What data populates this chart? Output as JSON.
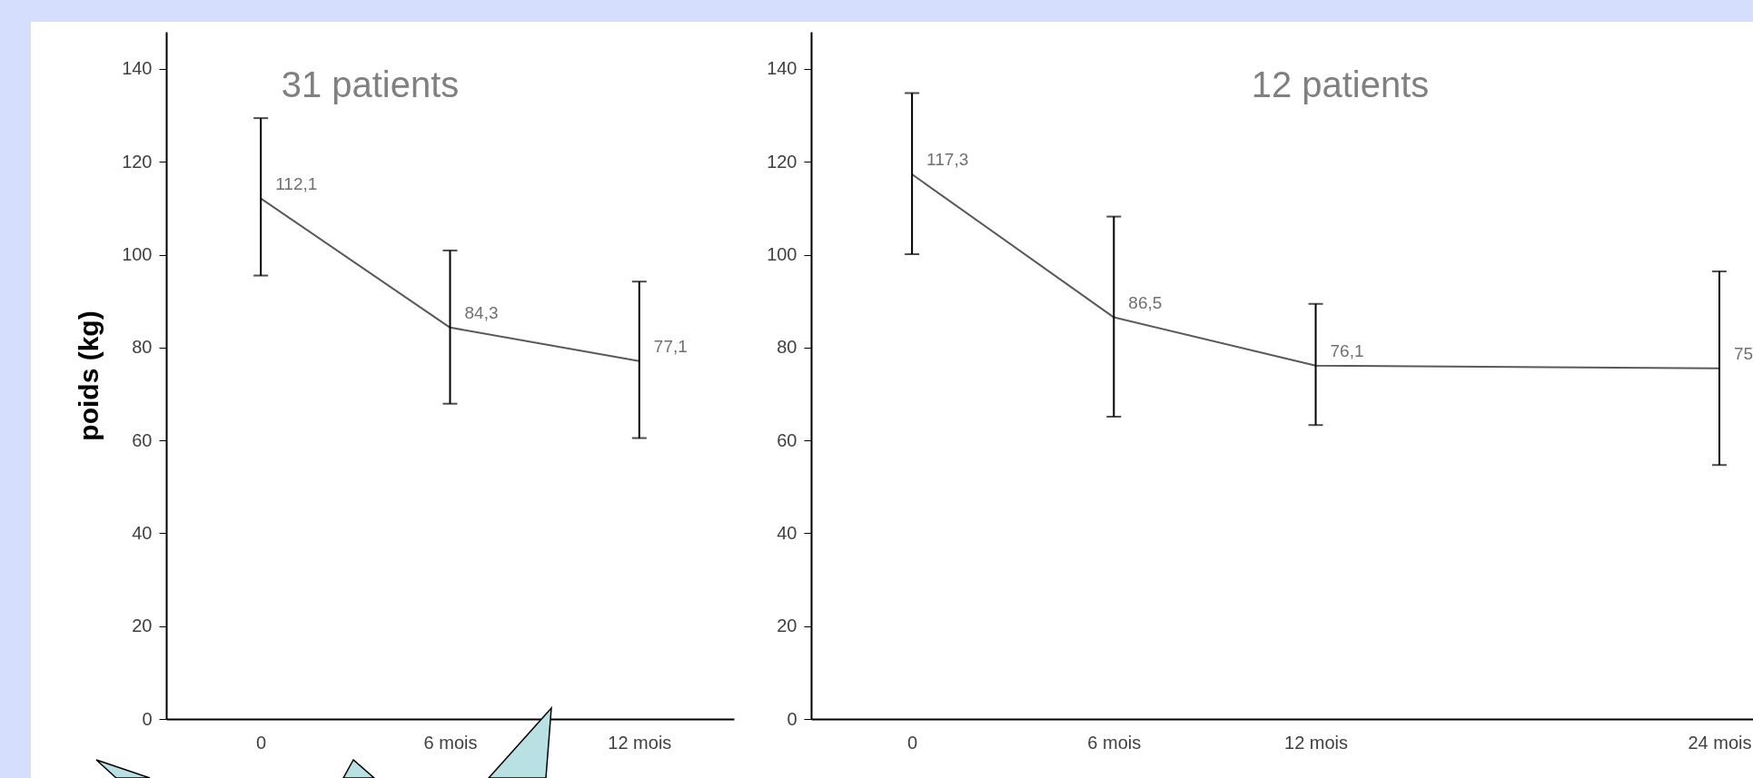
{
  "chart_data": [
    {
      "type": "line",
      "title": "31 patients",
      "ylabel": "poids (kg)",
      "categories": [
        "0",
        "6 mois",
        "12 mois"
      ],
      "series": [
        {
          "color": "#595959",
          "values": [
            112.1,
            84.3,
            77.1
          ],
          "value_labels": [
            "112,1",
            "84,3",
            "77,1"
          ],
          "errors": [
            [
              95.5,
              129.4
            ],
            [
              67.9,
              100.9
            ],
            [
              60.5,
              94.2
            ]
          ]
        }
      ],
      "ylim": [
        0,
        148
      ],
      "yticks": [
        0,
        20,
        40,
        60,
        80,
        100,
        120,
        140
      ]
    },
    {
      "type": "line",
      "title": "12 patients",
      "x": [
        0,
        6,
        12,
        24
      ],
      "xlim": [
        -3,
        25
      ],
      "xticks": [
        0,
        {
          "value": 6,
          "label": "6 mois"
        },
        {
          "value": 12,
          "label": "12 mois"
        },
        {
          "value": 24,
          "label": "24 mois"
        }
      ],
      "series": [
        {
          "color": "#595959",
          "values": [
            117.3,
            86.5,
            76.1,
            75.5
          ],
          "value_labels": [
            "117,3",
            "86,5",
            "76,1",
            "75"
          ],
          "errors": [
            [
              100.1,
              134.8
            ],
            [
              65.1,
              108.2
            ],
            [
              63.3,
              89.4
            ],
            [
              54.7,
              96.4
            ]
          ]
        }
      ],
      "ylim": [
        0,
        148
      ],
      "yticks": [
        0,
        20,
        40,
        60,
        80,
        100,
        120,
        140
      ]
    }
  ]
}
